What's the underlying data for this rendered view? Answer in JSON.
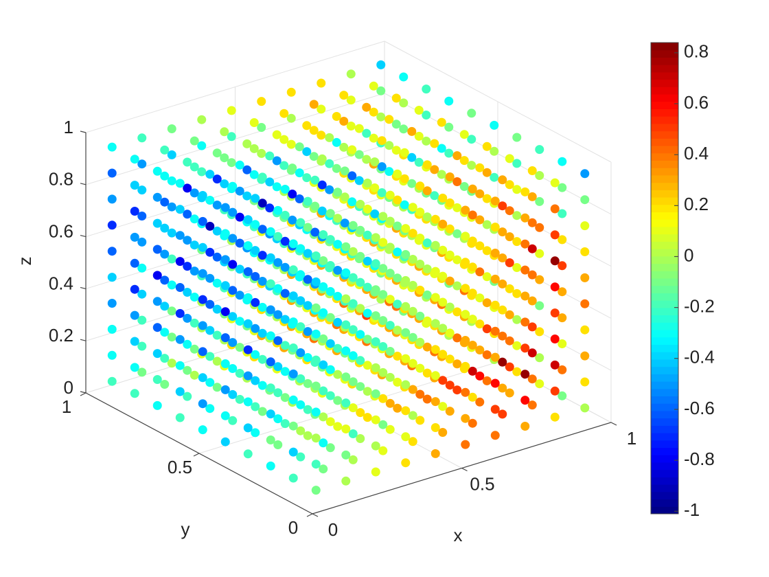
{
  "chart_data": {
    "type": "scatter3d",
    "x_label": "x",
    "y_label": "y",
    "z_label": "z",
    "x": [
      0.05,
      0.15,
      0.25,
      0.35,
      0.45,
      0.55,
      0.65,
      0.75,
      0.85,
      0.95
    ],
    "y": [
      0.05,
      0.15,
      0.25,
      0.35,
      0.45,
      0.55,
      0.65,
      0.75,
      0.85,
      0.95
    ],
    "z": [
      0.05,
      0.15,
      0.25,
      0.35,
      0.45,
      0.55,
      0.65,
      0.75,
      0.85,
      0.95
    ],
    "xlim": [
      0,
      1
    ],
    "ylim": [
      0,
      1
    ],
    "zlim": [
      0,
      1
    ],
    "xticks": [
      0,
      0.5,
      1
    ],
    "yticks": [
      0,
      0.5,
      1
    ],
    "zticks": [
      0,
      0.2,
      0.4,
      0.6,
      0.8,
      1
    ],
    "clim": [
      -1.01,
      0.84
    ],
    "cticks": [
      -1,
      -0.8,
      -0.6,
      -0.4,
      -0.2,
      0,
      0.2,
      0.4,
      0.6,
      0.8
    ],
    "colormap": "jet",
    "grid": true,
    "values": [
      [
        [
          -0.1,
          -0.2,
          0,
          -0.3,
          -0.1,
          -0.2,
          -0.3,
          -0.1,
          -0.4,
          -0.2
        ],
        [
          -0.2,
          -0.4,
          -0.1,
          -0.3,
          -0.5,
          -0.2,
          -0.3,
          -0.4,
          -0.2,
          -0.3
        ],
        [
          -0.3,
          -0.1,
          -0.4,
          -0.2,
          -0.6,
          -0.3,
          -0.5,
          -0.2,
          -0.4,
          -0.3
        ],
        [
          -0.2,
          -0.4,
          -0.3,
          -0.5,
          -0.7,
          -0.4,
          -0.3,
          -0.6,
          -0.3,
          -0.4
        ],
        [
          -0.4,
          -0.3,
          -0.5,
          -0.3,
          -0.6,
          -0.8,
          -0.4,
          -0.5,
          -0.3,
          -0.5
        ],
        [
          -0.3,
          -0.5,
          -0.4,
          -0.6,
          -0.5,
          -0.7,
          -0.5,
          -0.4,
          -0.6,
          -0.4
        ],
        [
          -0.2,
          -0.4,
          -0.3,
          -0.5,
          -0.7,
          -0.6,
          -0.8,
          -0.5,
          -0.4,
          -0.3
        ],
        [
          -0.3,
          -0.2,
          -0.4,
          -0.6,
          -0.5,
          -0.8,
          -0.6,
          -0.4,
          -0.5,
          -0.3
        ],
        [
          -0.2,
          -0.3,
          -0.4,
          -0.5,
          -0.7,
          -0.6,
          -0.5,
          -0.7,
          -0.4,
          -0.3
        ],
        [
          -0.2,
          -0.3,
          -0.3,
          -0.5,
          -0.4,
          -0.6,
          -0.7,
          -0.5,
          -0.6,
          -0.3
        ]
      ],
      [
        [
          0,
          -0.1,
          0.1,
          -0.2,
          -0.1,
          -0.3,
          -0.2,
          0,
          -0.3,
          -0.1
        ],
        [
          -0.1,
          -0.3,
          0,
          -0.2,
          -0.4,
          -0.1,
          -0.3,
          -0.3,
          -0.1,
          -0.2
        ],
        [
          -0.2,
          0,
          -0.3,
          -0.2,
          -0.5,
          -0.2,
          -0.4,
          -0.3,
          -0.3,
          -0.2
        ],
        [
          -0.1,
          -0.3,
          -0.2,
          -0.4,
          -0.6,
          -0.5,
          -0.3,
          -0.5,
          -0.2,
          -0.3
        ],
        [
          -0.3,
          -0.2,
          -0.4,
          -0.3,
          -0.5,
          -0.7,
          -0.6,
          -0.4,
          -0.3,
          -0.4
        ],
        [
          -0.2,
          -0.4,
          -0.3,
          -0.5,
          -0.4,
          -0.6,
          -0.8,
          -0.5,
          -0.5,
          -0.3
        ],
        [
          -0.3,
          -0.3,
          -0.2,
          -0.4,
          -0.6,
          -0.5,
          -0.7,
          -0.9,
          -0.3,
          -0.4
        ],
        [
          -0.2,
          -0.1,
          -0.3,
          -0.5,
          -0.4,
          -0.7,
          -0.5,
          -0.6,
          -0.8,
          -0.2
        ],
        [
          -0.1,
          -0.2,
          -0.3,
          -0.4,
          -0.6,
          -0.5,
          -0.4,
          -0.6,
          -0.3,
          -0.2
        ],
        [
          -0.1,
          -0.2,
          -0.2,
          -0.4,
          -0.3,
          -0.5,
          -0.6,
          -0.4,
          -0.5,
          -0.2
        ]
      ],
      [
        [
          0.1,
          0,
          0.1,
          -0.1,
          0,
          -0.2,
          -0.1,
          -0.1,
          -0.2,
          0
        ],
        [
          0,
          -0.2,
          0.1,
          -0.1,
          -0.3,
          -0.2,
          -0.2,
          -0.2,
          0,
          -0.1
        ],
        [
          -0.1,
          0.1,
          -0.2,
          -0.3,
          -0.4,
          -0.1,
          -0.3,
          -0.2,
          -0.2,
          -0.1
        ],
        [
          0,
          -0.2,
          -0.1,
          -0.3,
          -0.5,
          -0.4,
          -0.6,
          -0.4,
          -0.1,
          -0.2
        ],
        [
          -0.2,
          -0.1,
          -0.3,
          -0.2,
          -0.4,
          -0.6,
          -0.5,
          -0.7,
          -0.2,
          -0.3
        ],
        [
          -0.1,
          -0.3,
          -0.2,
          -0.4,
          -0.3,
          -0.5,
          -0.7,
          -0.6,
          -0.9,
          -0.2
        ],
        [
          -0.2,
          -0.2,
          -0.1,
          -0.3,
          -0.5,
          -0.4,
          -0.6,
          -0.8,
          -0.5,
          -0.3
        ],
        [
          -0.1,
          0,
          -0.2,
          -0.4,
          -0.3,
          -0.6,
          -0.4,
          -0.5,
          -0.7,
          -0.1
        ],
        [
          0,
          -0.1,
          -0.2,
          -0.3,
          -0.5,
          -0.4,
          -0.3,
          -0.5,
          -0.2,
          -0.1
        ],
        [
          0,
          -0.1,
          -0.1,
          -0.3,
          -0.2,
          -0.4,
          -0.5,
          -0.3,
          -0.4,
          -0.1
        ]
      ],
      [
        [
          0.2,
          0.1,
          0.2,
          0,
          0.1,
          -0.1,
          0,
          0,
          -0.1,
          0.1
        ],
        [
          0.1,
          -0.1,
          0.2,
          0,
          -0.2,
          -0.1,
          -0.1,
          -0.1,
          0.1,
          0
        ],
        [
          0,
          0.2,
          -0.1,
          -0.2,
          -0.3,
          0,
          -0.2,
          -0.1,
          -0.1,
          0
        ],
        [
          0.1,
          -0.1,
          0,
          -0.2,
          -0.4,
          -0.3,
          -0.5,
          -0.3,
          0,
          -0.1
        ],
        [
          -0.1,
          0,
          -0.2,
          -0.1,
          -0.3,
          -0.5,
          -0.4,
          -0.6,
          -0.1,
          -0.2
        ],
        [
          0,
          -0.2,
          -0.1,
          -0.3,
          -0.2,
          -0.4,
          -0.6,
          -0.5,
          -0.8,
          -0.1
        ],
        [
          -0.1,
          -0.1,
          0,
          -0.2,
          -0.4,
          -0.3,
          -0.5,
          -0.7,
          -0.4,
          -0.2
        ],
        [
          0,
          0.1,
          -0.1,
          -0.3,
          -0.2,
          -0.5,
          -0.3,
          -0.4,
          -0.6,
          0
        ],
        [
          0.1,
          0,
          -0.1,
          -0.2,
          -0.4,
          -0.3,
          -0.2,
          -0.4,
          -0.1,
          0
        ],
        [
          0.1,
          0,
          0,
          -0.2,
          -0.1,
          -0.3,
          -0.4,
          -0.2,
          -0.3,
          0
        ]
      ],
      [
        [
          0.3,
          0.2,
          0.3,
          0.1,
          0.2,
          0,
          0.1,
          0.1,
          0,
          0.2
        ],
        [
          0.2,
          0,
          0.3,
          0.1,
          -0.1,
          0,
          0,
          0,
          0.2,
          0.1
        ],
        [
          0.1,
          0.3,
          0,
          -0.1,
          -0.2,
          0.1,
          -0.1,
          0,
          0,
          0.1
        ],
        [
          0.2,
          0,
          0.1,
          -0.1,
          -0.3,
          -0.2,
          -0.4,
          -0.2,
          0.1,
          0
        ],
        [
          0,
          0.1,
          -0.1,
          0,
          -0.2,
          -0.4,
          -0.3,
          -0.5,
          0,
          -0.1
        ],
        [
          0.1,
          -0.1,
          0,
          -0.2,
          -0.1,
          -0.3,
          -0.5,
          -0.4,
          -0.7,
          0
        ],
        [
          0,
          0,
          0.1,
          -0.1,
          -0.3,
          -0.2,
          -0.4,
          -0.6,
          -0.3,
          -0.1
        ],
        [
          0.1,
          0.2,
          0,
          -0.2,
          -0.1,
          -0.4,
          -0.2,
          -0.3,
          -0.5,
          0.1
        ],
        [
          0.2,
          0.1,
          0,
          -0.1,
          -0.3,
          -0.2,
          -0.1,
          -0.3,
          0,
          0.1
        ],
        [
          0.2,
          0.1,
          0.1,
          -0.1,
          0,
          -0.2,
          -0.3,
          -0.1,
          -0.2,
          0.1
        ]
      ],
      [
        [
          0.4,
          0.3,
          0.4,
          0.2,
          0.3,
          0.1,
          0.2,
          0.2,
          0.1,
          0.3
        ],
        [
          0.3,
          0.1,
          0.5,
          0.2,
          0,
          0.1,
          0.1,
          0.1,
          0.3,
          0.2
        ],
        [
          0.2,
          0.4,
          0.1,
          0,
          -0.1,
          0.2,
          0,
          0.1,
          0.1,
          0.2
        ],
        [
          0.3,
          0.1,
          0.2,
          0,
          -0.2,
          -0.1,
          -0.3,
          -0.1,
          0.2,
          0.1
        ],
        [
          0.1,
          0.2,
          0,
          0.1,
          -0.1,
          -0.3,
          -0.2,
          -0.4,
          0.1,
          0
        ],
        [
          0.2,
          0,
          0.1,
          -0.1,
          0,
          -0.2,
          -0.4,
          -0.3,
          -0.6,
          0.1
        ],
        [
          0.1,
          0.1,
          0.2,
          0,
          -0.2,
          -0.1,
          -0.3,
          -0.5,
          -0.2,
          0
        ],
        [
          0.2,
          0.3,
          0.1,
          -0.1,
          0,
          -0.3,
          -0.1,
          -0.2,
          -0.4,
          0.2
        ],
        [
          0.3,
          0.2,
          0.1,
          0,
          -0.2,
          -0.1,
          0,
          -0.2,
          0.1,
          0.2
        ],
        [
          0.3,
          0.2,
          0.2,
          0,
          0.1,
          -0.1,
          -0.2,
          0,
          -0.1,
          0.2
        ]
      ],
      [
        [
          0.4,
          0.5,
          0.6,
          0.3,
          0.4,
          0.2,
          0.3,
          0.3,
          0.2,
          0.3
        ],
        [
          0.4,
          0.2,
          0.7,
          0.3,
          0.1,
          0.2,
          0.2,
          0.2,
          0.4,
          0.3
        ],
        [
          0.3,
          0.5,
          0.2,
          0.1,
          0,
          0.3,
          0.1,
          0.2,
          0.2,
          0.3
        ],
        [
          0.4,
          0.2,
          0.3,
          0.1,
          -0.1,
          0,
          -0.2,
          0,
          0.3,
          0.2
        ],
        [
          0.2,
          0.3,
          0.1,
          0.2,
          0,
          -0.2,
          -0.1,
          -0.3,
          0.2,
          0.1
        ],
        [
          0.3,
          0.1,
          0.2,
          0,
          0.1,
          -0.1,
          -0.3,
          -0.2,
          -0.5,
          0.2
        ],
        [
          0.2,
          0.2,
          0.3,
          0.1,
          -0.1,
          0,
          -0.2,
          -0.4,
          -0.1,
          0.1
        ],
        [
          0.3,
          0.4,
          0.2,
          0,
          0.1,
          -0.2,
          0,
          -0.1,
          -0.3,
          0.2
        ],
        [
          0.4,
          0.3,
          0.2,
          0.1,
          -0.1,
          0,
          0.1,
          -0.1,
          0.2,
          0.3
        ],
        [
          0.3,
          0.3,
          0.3,
          0.1,
          0.2,
          0,
          -0.1,
          0.1,
          0,
          0.2
        ]
      ],
      [
        [
          0.3,
          0.6,
          0.8,
          0.5,
          0.4,
          0.3,
          0.4,
          0.4,
          0.3,
          0.2
        ],
        [
          0.5,
          0.3,
          0.8,
          0.4,
          0.2,
          0.3,
          0.3,
          0.3,
          0.5,
          0.3
        ],
        [
          0.4,
          0.6,
          0.3,
          0.2,
          0.1,
          0.4,
          0.2,
          0.3,
          0.3,
          0.2
        ],
        [
          0.5,
          0.3,
          0.4,
          0.2,
          0,
          0.1,
          -0.1,
          0.1,
          0.4,
          0.3
        ],
        [
          0.3,
          0.4,
          0.2,
          0.3,
          0.1,
          -0.1,
          0,
          -0.2,
          0.3,
          0.2
        ],
        [
          0.4,
          0.2,
          0.3,
          0.1,
          0.2,
          0,
          -0.2,
          -0.1,
          -0.4,
          0.3
        ],
        [
          0.3,
          0.3,
          0.4,
          0.2,
          0,
          0.1,
          -0.1,
          -0.3,
          0,
          0.2
        ],
        [
          0.4,
          0.5,
          0.3,
          0.1,
          0.2,
          -0.1,
          0.1,
          0,
          -0.2,
          0.3
        ],
        [
          0.3,
          0.4,
          0.3,
          0.2,
          0,
          0.1,
          0.2,
          0,
          0.3,
          0.2
        ],
        [
          0.2,
          0.3,
          0.3,
          0.2,
          0.3,
          0.1,
          0,
          0.2,
          0.1,
          0.2
        ]
      ],
      [
        [
          0.2,
          0.5,
          0.7,
          0.6,
          0.5,
          0.6,
          0.8,
          0.5,
          0.4,
          0.1
        ],
        [
          0.4,
          0.4,
          0.7,
          0.5,
          0.3,
          0.4,
          0.7,
          0.4,
          0.3,
          0.2
        ],
        [
          0.3,
          0.5,
          0.4,
          0.3,
          0.2,
          0.5,
          0.3,
          0.4,
          0.2,
          0.1
        ],
        [
          0.4,
          0.4,
          0.5,
          0.3,
          0.1,
          0.2,
          0,
          0.2,
          0.3,
          0.2
        ],
        [
          0.2,
          0.3,
          0.3,
          0.4,
          0.2,
          0,
          0.1,
          -0.1,
          0.2,
          0.1
        ],
        [
          0.3,
          0.3,
          0.4,
          0.2,
          0.3,
          0.1,
          -0.1,
          0,
          -0.3,
          0.2
        ],
        [
          0.2,
          0.3,
          0.3,
          0.3,
          0.1,
          0.2,
          0,
          -0.2,
          0.1,
          0.1
        ],
        [
          0.3,
          0.4,
          0.3,
          0.2,
          0.3,
          0,
          0.2,
          0.1,
          -0.1,
          0.2
        ],
        [
          0.2,
          0.3,
          0.2,
          0.3,
          0.1,
          0.2,
          0.3,
          0.1,
          0.2,
          0.1
        ],
        [
          0.1,
          0.2,
          0.2,
          0.1,
          0.2,
          0.1,
          0,
          0.1,
          0.1,
          0
        ]
      ],
      [
        [
          0,
          0.2,
          0.3,
          0.2,
          0.4,
          0.3,
          0.2,
          0.1,
          -0.1,
          -0.5
        ],
        [
          -0.1,
          0.4,
          0.1,
          0.3,
          0.3,
          0.5,
          0.2,
          -0.2,
          -0.1,
          -0.3
        ],
        [
          0.1,
          0,
          0.2,
          -0.1,
          0.3,
          0.1,
          0.4,
          -0.1,
          0,
          -0.2
        ],
        [
          0.2,
          0.1,
          0,
          0.2,
          0.1,
          0.2,
          0,
          0.1,
          -0.2,
          -0.1
        ],
        [
          0,
          0.2,
          0.1,
          -0.1,
          0.2,
          0,
          0.1,
          -0.2,
          0,
          -0.3
        ],
        [
          0.1,
          0,
          0.2,
          0.1,
          0.2,
          0.1,
          -0.1,
          0,
          -0.2,
          -0.1
        ],
        [
          0,
          0.1,
          -0.1,
          0.2,
          0,
          0.1,
          0,
          -0.2,
          -0.1,
          -0.3
        ],
        [
          0.1,
          0,
          0.2,
          0.1,
          0.2,
          -0.1,
          0.1,
          0,
          -0.2,
          -0.2
        ],
        [
          -0.1,
          0.1,
          0,
          0.2,
          0,
          0.1,
          0.2,
          -0.1,
          0,
          -0.3
        ],
        [
          0,
          -0.1,
          0.1,
          0,
          0.1,
          -0.1,
          -0.2,
          0,
          -0.1,
          -0.4
        ]
      ]
    ]
  }
}
